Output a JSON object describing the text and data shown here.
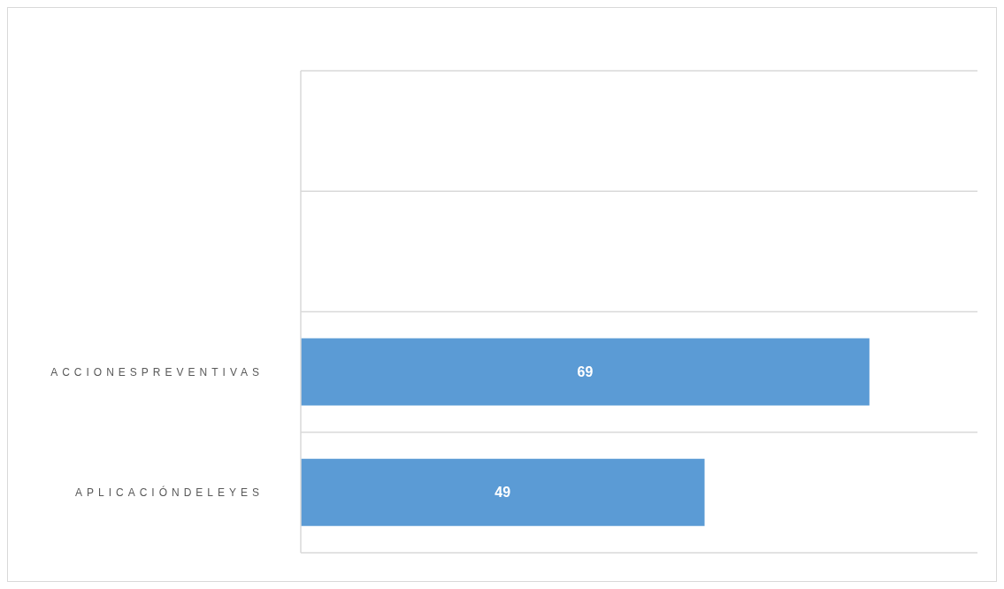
{
  "chart_data": {
    "type": "bar",
    "orientation": "horizontal",
    "categories": [
      null,
      null,
      "ACCIONESPREVENTIVAS",
      "APLICACIÓNDELEYES"
    ],
    "values": [
      null,
      null,
      69,
      49
    ],
    "color": "#5b9bd5",
    "data_labels": true,
    "grid": "y",
    "tick_labels": "y"
  }
}
